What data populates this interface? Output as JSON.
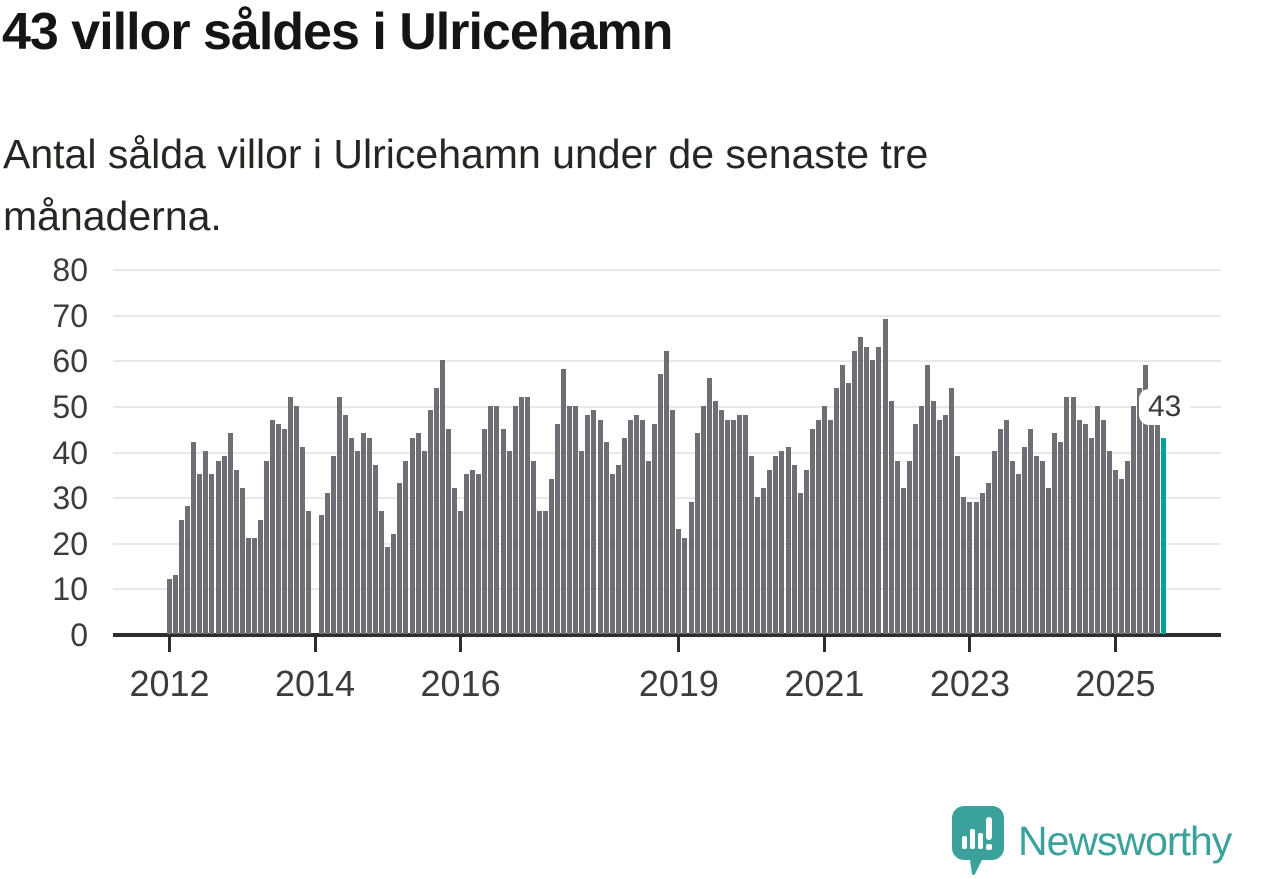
{
  "header": {
    "title": "43 villor såldes i Ulricehamn"
  },
  "subtitle": {
    "line1": "Antal sålda villor i Ulricehamn under de senaste tre",
    "line2": "månaderna."
  },
  "annotation": {
    "label": "43"
  },
  "footer": {
    "brand": "Newsworthy",
    "logo_icon": "newsworthy-speech-bubble-bar-chart-icon"
  },
  "colors": {
    "bar": "#6e6e75",
    "accent": "#00a29a",
    "grid": "#e8e8e8",
    "axis": "#2d2d2d",
    "text": "#3c3c3c",
    "logo": "#3aa29b"
  },
  "chart_data": {
    "type": "bar",
    "title": "43 villor såldes i Ulricehamn",
    "subtitle": "Antal sålda villor i Ulricehamn under de senaste tre månaderna.",
    "ylabel": "",
    "xlabel": "",
    "x_start": "2012-01",
    "x_interval": "month",
    "ylim": [
      0,
      80
    ],
    "yticks": [
      0,
      10,
      20,
      30,
      40,
      50,
      60,
      70,
      80
    ],
    "grid": "horizontal",
    "legend": "none",
    "xticks": [
      {
        "label": "2012",
        "index": 0
      },
      {
        "label": "2014",
        "index": 24
      },
      {
        "label": "2016",
        "index": 48
      },
      {
        "label": "2019",
        "index": 84
      },
      {
        "label": "2021",
        "index": 108
      },
      {
        "label": "2023",
        "index": 132
      },
      {
        "label": "2025",
        "index": 156
      }
    ],
    "highlight_last": {
      "value": 43,
      "label": "43"
    },
    "values": [
      12,
      13,
      25,
      28,
      42,
      35,
      40,
      35,
      38,
      39,
      44,
      36,
      32,
      21,
      21,
      25,
      38,
      47,
      46,
      45,
      52,
      50,
      41,
      27,
      0,
      26,
      31,
      39,
      52,
      48,
      43,
      40,
      44,
      43,
      37,
      27,
      19,
      22,
      33,
      38,
      43,
      44,
      40,
      49,
      54,
      60,
      45,
      32,
      27,
      35,
      36,
      35,
      45,
      50,
      50,
      45,
      40,
      50,
      52,
      52,
      38,
      27,
      27,
      34,
      46,
      58,
      50,
      50,
      40,
      48,
      49,
      47,
      42,
      35,
      37,
      43,
      47,
      48,
      47,
      38,
      46,
      57,
      62,
      49,
      23,
      21,
      29,
      44,
      50,
      56,
      51,
      49,
      47,
      47,
      48,
      48,
      39,
      30,
      32,
      36,
      39,
      40,
      41,
      37,
      31,
      36,
      45,
      47,
      50,
      47,
      54,
      59,
      55,
      62,
      65,
      63,
      60,
      63,
      69,
      51,
      38,
      32,
      38,
      46,
      50,
      59,
      51,
      47,
      48,
      54,
      39,
      30,
      29,
      29,
      31,
      33,
      40,
      45,
      47,
      38,
      35,
      41,
      45,
      39,
      38,
      32,
      44,
      42,
      52,
      52,
      47,
      46,
      43,
      50,
      47,
      40,
      36,
      34,
      38,
      50,
      54,
      59,
      47,
      46,
      43
    ]
  }
}
